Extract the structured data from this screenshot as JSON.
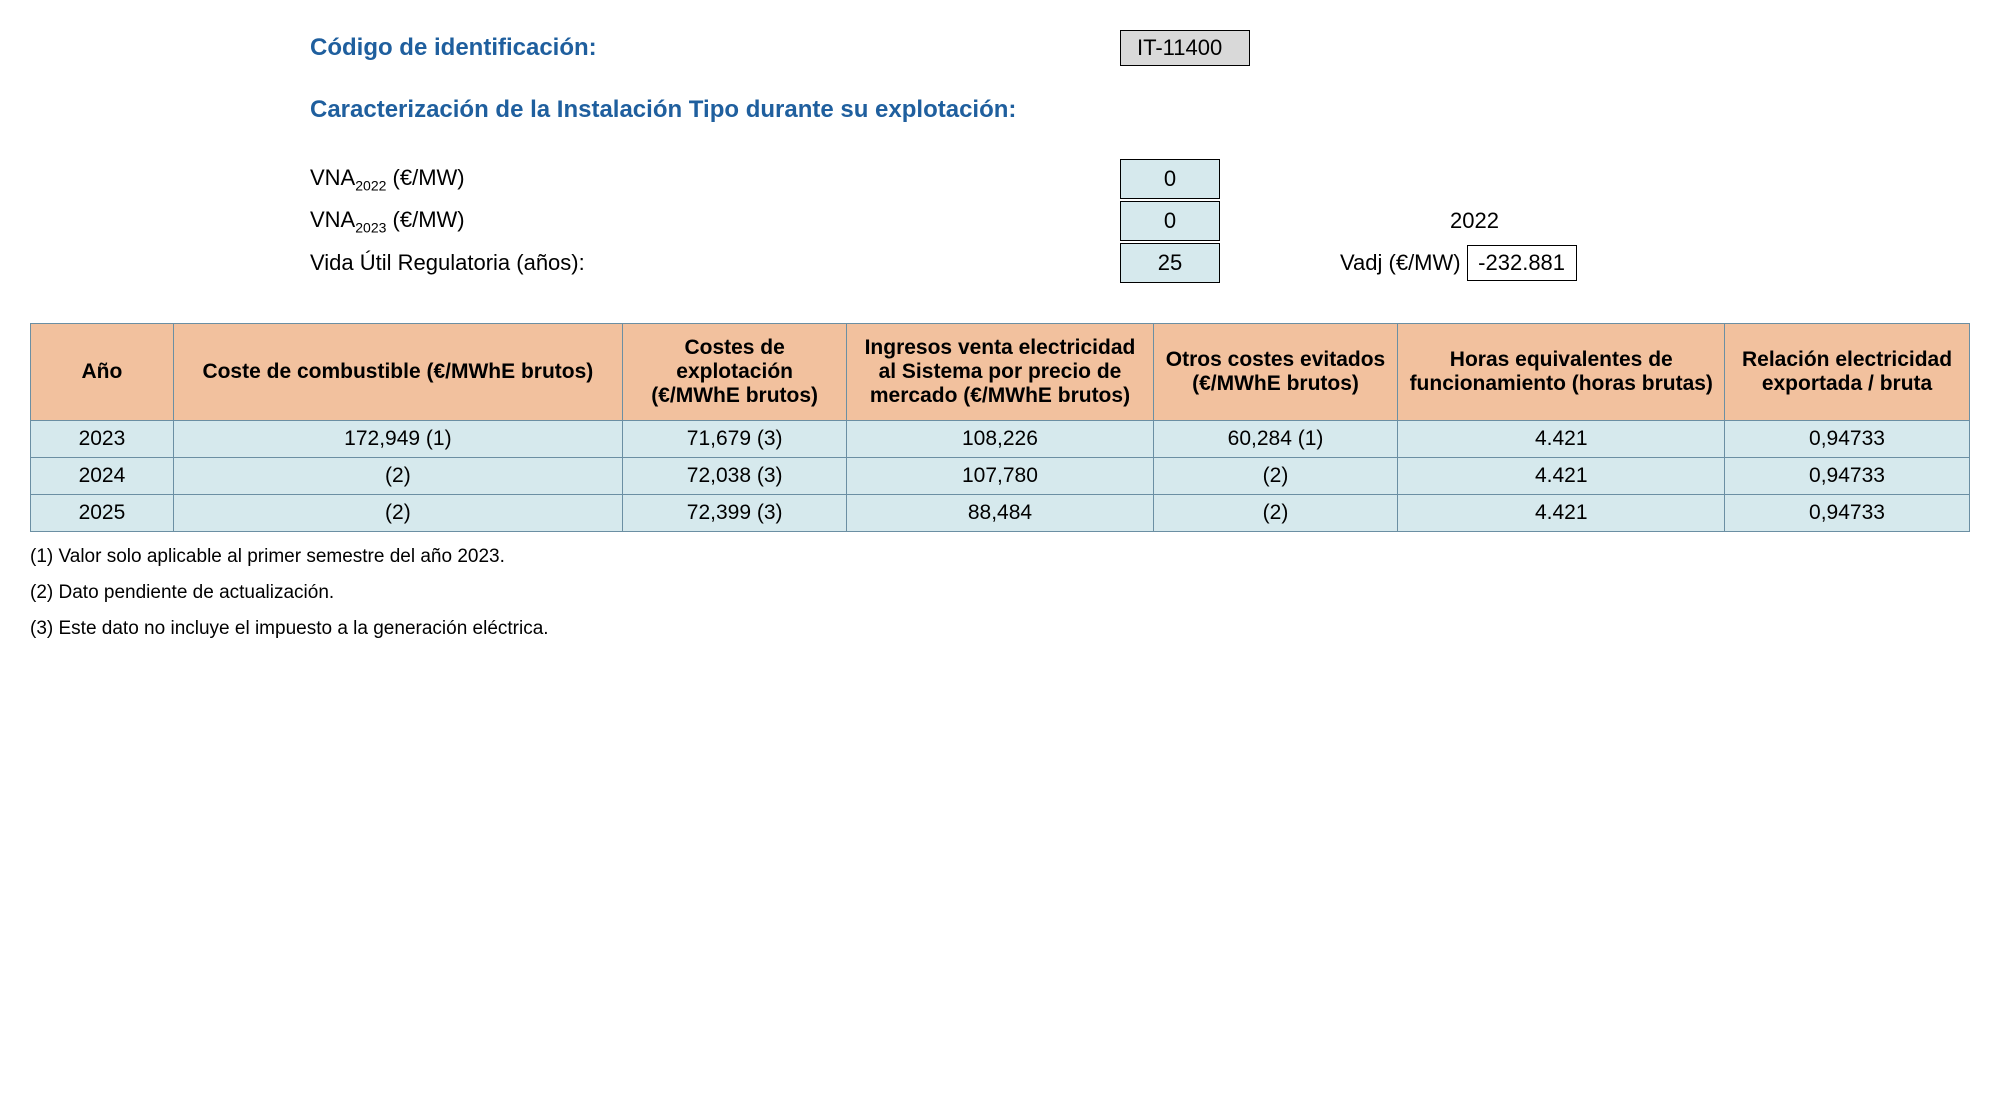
{
  "header": {
    "id_label": "Código de identificación:",
    "id_value": "IT-11400",
    "section_title": "Caracterización de la Instalación Tipo durante su explotación:"
  },
  "params": {
    "vna2022_label_prefix": "VNA",
    "vna2022_label_sub": "2022",
    "vna2022_label_suffix": " (€/MW)",
    "vna2022_value": "0",
    "vna2023_label_prefix": "VNA",
    "vna2023_label_sub": "2023",
    "vna2023_label_suffix": " (€/MW)",
    "vna2023_value": "0",
    "year_extra": "2022",
    "life_label": "Vida Útil Regulatoria (años):",
    "life_value": "25",
    "vadj_label": "Vadj (€/MW)",
    "vadj_value": "-232.881"
  },
  "table": {
    "columns": [
      "Año",
      "Coste de combustible (€/MWhE brutos)",
      "Costes de explotación (€/MWhE brutos)",
      "Ingresos venta electricidad al Sistema por precio de mercado (€/MWhE brutos)",
      "Otros costes evitados (€/MWhE brutos)",
      "Horas equivalentes de funcionamiento (horas brutas)",
      "Relación electricidad exportada / bruta"
    ],
    "rows": [
      [
        "2023",
        "172,949 (1)",
        "71,679 (3)",
        "108,226",
        "60,284 (1)",
        "4.421",
        "0,94733"
      ],
      [
        "2024",
        "(2)",
        "72,038 (3)",
        "107,780",
        "(2)",
        "4.421",
        "0,94733"
      ],
      [
        "2025",
        "(2)",
        "72,399 (3)",
        "88,484",
        "(2)",
        "4.421",
        "0,94733"
      ]
    ]
  },
  "footnotes": [
    "(1) Valor solo aplicable al primer semestre del año 2023.",
    "(2) Dato pendiente de actualización.",
    "(3) Este dato no incluye el impuesto a la generación eléctrica."
  ],
  "colors": {
    "header_bg": "#f2c19e",
    "cell_bg": "#d6e9ed",
    "border": "#6b8fa3",
    "title_color": "#1f5f9e",
    "id_box_bg": "#d9d9d9"
  }
}
